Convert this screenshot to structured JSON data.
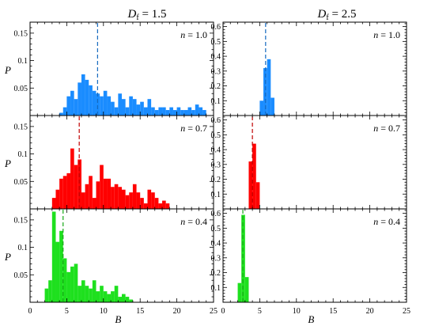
{
  "figure": {
    "columns": [
      {
        "title_prefix": "D",
        "title_sub": "f",
        "title_suffix": " = 1.5"
      },
      {
        "title_prefix": "D",
        "title_sub": "f",
        "title_suffix": " = 2.5"
      }
    ],
    "ylabel": "P",
    "xlabel": "B",
    "x_ticks": [
      0,
      5,
      10,
      15,
      20,
      25
    ],
    "xlim": [
      0,
      25
    ]
  },
  "chart_data": [
    {
      "type": "bar",
      "column": 0,
      "row": 0,
      "annotation": "n = 1.0",
      "color": "#1a8cff",
      "xlabel": "",
      "ylabel": "P",
      "ylim": [
        0,
        0.17
      ],
      "y_ticks": [
        0.05,
        0.1,
        0.15
      ],
      "y_tick_labels": [
        "0.05",
        "0.1",
        "0.15"
      ],
      "bin_start": 4.0,
      "bin_width": 0.5,
      "values": [
        0.005,
        0.015,
        0.035,
        0.045,
        0.03,
        0.06,
        0.075,
        0.065,
        0.055,
        0.045,
        0.04,
        0.035,
        0.045,
        0.035,
        0.025,
        0.015,
        0.04,
        0.03,
        0.015,
        0.035,
        0.03,
        0.02,
        0.025,
        0.015,
        0.03,
        0.015,
        0.01,
        0.015,
        0.015,
        0.01,
        0.015,
        0.01,
        0.015,
        0.01,
        0.01,
        0.015,
        0.01,
        0.02,
        0.015,
        0.01
      ],
      "marker_x": 9.2
    },
    {
      "type": "bar",
      "column": 1,
      "row": 0,
      "annotation": "n = 1.0",
      "color": "#1a8cff",
      "xlabel": "",
      "ylabel": "",
      "ylim": [
        0,
        0.63
      ],
      "y_ticks": [
        0.1,
        0.2,
        0.3,
        0.4,
        0.5,
        0.6
      ],
      "y_tick_labels": [
        "0.1",
        "0.2",
        "0.3",
        "0.4",
        "0.5",
        "0.6"
      ],
      "bin_start": 5.0,
      "bin_width": 0.5,
      "values": [
        0.1,
        0.32,
        0.38,
        0.12
      ],
      "marker_x": 5.8
    },
    {
      "type": "bar",
      "column": 0,
      "row": 1,
      "annotation": "n = 0.7",
      "color": "#ff0000",
      "xlabel": "",
      "ylabel": "P",
      "ylim": [
        0,
        0.17
      ],
      "y_ticks": [
        0.05,
        0.1,
        0.15
      ],
      "y_tick_labels": [
        "0.05",
        "0.1",
        "0.15"
      ],
      "bin_start": 3.0,
      "bin_width": 0.5,
      "values": [
        0.02,
        0.035,
        0.055,
        0.06,
        0.065,
        0.11,
        0.08,
        0.09,
        0.03,
        0.045,
        0.06,
        0.02,
        0.05,
        0.08,
        0.055,
        0.055,
        0.04,
        0.045,
        0.04,
        0.035,
        0.025,
        0.03,
        0.045,
        0.03,
        0.02,
        0.01,
        0.035,
        0.03,
        0.02,
        0.01,
        0.015,
        0.01
      ],
      "marker_x": 6.7
    },
    {
      "type": "bar",
      "column": 1,
      "row": 1,
      "annotation": "n = 0.7",
      "color": "#ff0000",
      "xlabel": "",
      "ylabel": "",
      "ylim": [
        0,
        0.63
      ],
      "y_ticks": [
        0.1,
        0.2,
        0.3,
        0.4,
        0.5,
        0.6
      ],
      "y_tick_labels": [
        "0.1",
        "0.2",
        "0.3",
        "0.4",
        "0.5",
        "0.6"
      ],
      "bin_start": 3.5,
      "bin_width": 0.5,
      "values": [
        0.32,
        0.44,
        0.18
      ],
      "marker_x": 4.0
    },
    {
      "type": "bar",
      "column": 0,
      "row": 2,
      "annotation": "n = 0.4",
      "color": "#1ee01e",
      "xlabel": "B",
      "ylabel": "P",
      "ylim": [
        0,
        0.17
      ],
      "y_ticks": [
        0.05,
        0.1,
        0.15
      ],
      "y_tick_labels": [
        "0.05",
        "0.1",
        "0.15"
      ],
      "bin_start": 2.0,
      "bin_width": 0.5,
      "values": [
        0.025,
        0.04,
        0.165,
        0.11,
        0.13,
        0.08,
        0.055,
        0.065,
        0.07,
        0.03,
        0.04,
        0.03,
        0.025,
        0.04,
        0.02,
        0.03,
        0.02,
        0.015,
        0.02,
        0.03,
        0.01,
        0.015,
        0.01,
        0.005
      ],
      "marker_x": 4.5
    },
    {
      "type": "bar",
      "column": 1,
      "row": 2,
      "annotation": "n = 0.4",
      "color": "#1ee01e",
      "xlabel": "B",
      "ylabel": "",
      "ylim": [
        0,
        0.63
      ],
      "y_ticks": [
        0.1,
        0.2,
        0.3,
        0.4,
        0.5,
        0.6
      ],
      "y_tick_labels": [
        "0.1",
        "0.2",
        "0.3",
        "0.4",
        "0.5",
        "0.6"
      ],
      "bin_start": 2.0,
      "bin_width": 0.5,
      "values": [
        0.13,
        0.59,
        0.17
      ],
      "marker_x": 2.7
    }
  ]
}
